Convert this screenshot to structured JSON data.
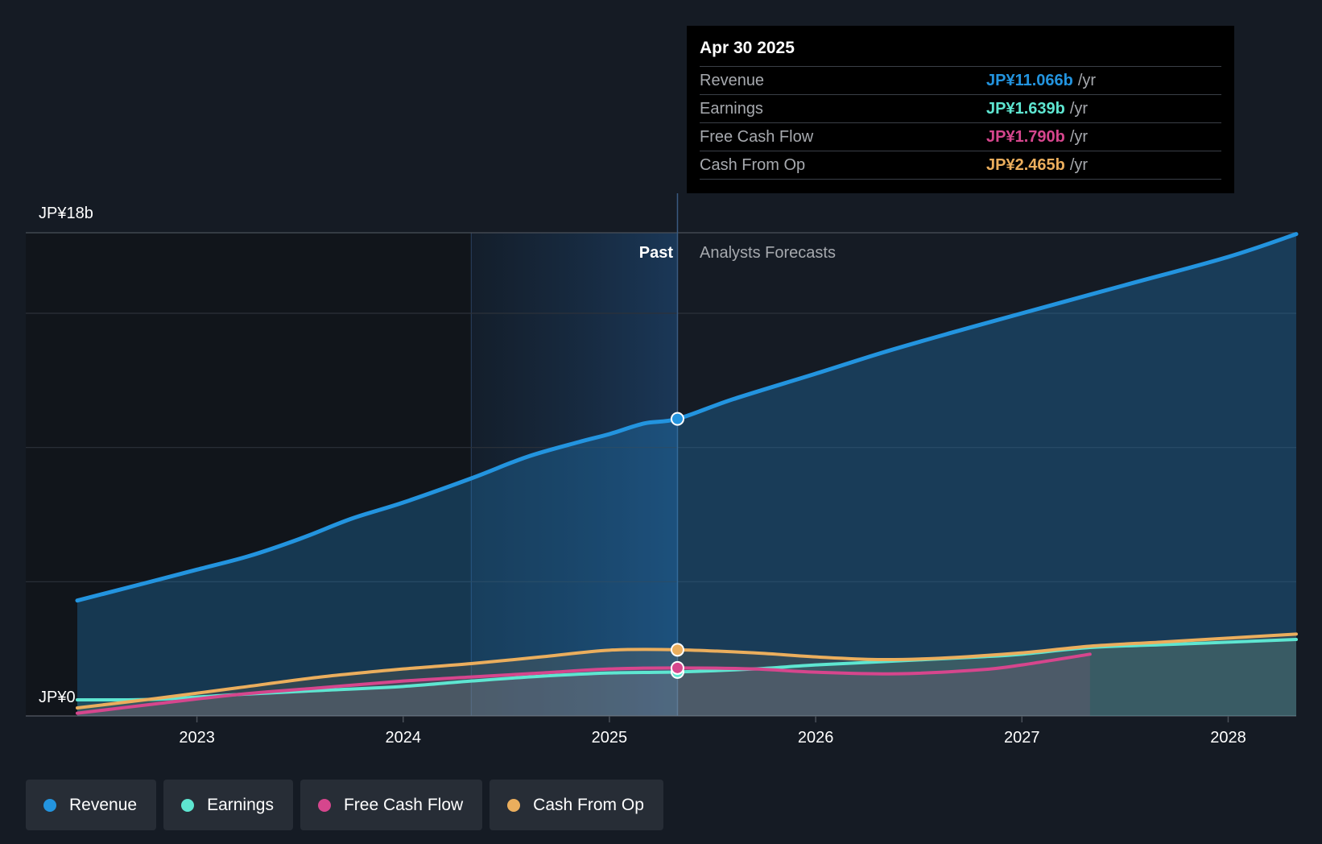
{
  "chart_data": {
    "type": "line",
    "y_axis": {
      "unit_prefix": "JP¥",
      "min": 0,
      "max": 18,
      "top_label": "JP¥18b",
      "bottom_label": "JP¥0"
    },
    "x_axis": {
      "tick_labels": [
        "2023",
        "2024",
        "2025",
        "2026",
        "2027",
        "2028"
      ],
      "range": [
        2022.42,
        2028.33
      ]
    },
    "past_label": "Past",
    "forecast_label": "Analysts Forecasts",
    "divider_x": 2025.33,
    "highlight_start_x": 2024.33,
    "series": [
      {
        "name": "Revenue",
        "color": "#2394df",
        "x": [
          2022.42,
          2022.75,
          2023.0,
          2023.25,
          2023.5,
          2023.75,
          2024.0,
          2024.33,
          2024.6,
          2024.85,
          2025.0,
          2025.17,
          2025.33,
          2025.6,
          2026.0,
          2026.33,
          2026.67,
          2027.0,
          2027.5,
          2028.0,
          2028.33
        ],
        "values": [
          4.3,
          4.95,
          5.45,
          5.95,
          6.6,
          7.35,
          7.95,
          8.85,
          9.65,
          10.2,
          10.5,
          10.9,
          11.066,
          11.8,
          12.75,
          13.55,
          14.3,
          15.0,
          16.05,
          17.1,
          17.95
        ]
      },
      {
        "name": "Earnings",
        "color": "#5ee6d1",
        "x": [
          2022.42,
          2022.8,
          2023.2,
          2023.6,
          2024.0,
          2024.33,
          2024.67,
          2025.0,
          2025.33,
          2025.7,
          2026.0,
          2026.4,
          2026.8,
          2027.0,
          2027.33,
          2027.67,
          2028.0,
          2028.33
        ],
        "values": [
          0.6,
          0.62,
          0.8,
          0.95,
          1.1,
          1.3,
          1.48,
          1.6,
          1.639,
          1.75,
          1.9,
          2.05,
          2.2,
          2.3,
          2.55,
          2.65,
          2.75,
          2.85
        ]
      },
      {
        "name": "Free Cash Flow",
        "color": "#d6468d",
        "x": [
          2022.42,
          2022.8,
          2023.2,
          2023.6,
          2024.0,
          2024.33,
          2024.67,
          2025.0,
          2025.33,
          2025.7,
          2026.0,
          2026.4,
          2026.8,
          2027.0,
          2027.33
        ],
        "values": [
          0.1,
          0.45,
          0.8,
          1.05,
          1.3,
          1.45,
          1.6,
          1.75,
          1.79,
          1.75,
          1.63,
          1.57,
          1.72,
          1.9,
          2.3
        ]
      },
      {
        "name": "Cash From Op",
        "color": "#ebae5d",
        "x": [
          2022.42,
          2022.8,
          2023.2,
          2023.6,
          2024.0,
          2024.33,
          2024.67,
          2025.0,
          2025.33,
          2025.7,
          2026.0,
          2026.3,
          2026.6,
          2027.0,
          2027.33,
          2027.67,
          2028.0,
          2028.33
        ],
        "values": [
          0.3,
          0.65,
          1.05,
          1.45,
          1.75,
          1.95,
          2.2,
          2.45,
          2.465,
          2.35,
          2.2,
          2.1,
          2.15,
          2.35,
          2.6,
          2.75,
          2.9,
          3.05
        ]
      }
    ]
  },
  "tooltip": {
    "date": "Apr 30 2025",
    "unit": "/yr",
    "rows": [
      {
        "label": "Revenue",
        "value": "JP¥11.066b",
        "color": "#2394df"
      },
      {
        "label": "Earnings",
        "value": "JP¥1.639b",
        "color": "#5ee6d1"
      },
      {
        "label": "Free Cash Flow",
        "value": "JP¥1.790b",
        "color": "#d6468d"
      },
      {
        "label": "Cash From Op",
        "value": "JP¥2.465b",
        "color": "#ebae5d"
      }
    ]
  },
  "legend": [
    {
      "label": "Revenue",
      "color": "#2394df"
    },
    {
      "label": "Earnings",
      "color": "#5ee6d1"
    },
    {
      "label": "Free Cash Flow",
      "color": "#d6468d"
    },
    {
      "label": "Cash From Op",
      "color": "#ebae5d"
    }
  ]
}
